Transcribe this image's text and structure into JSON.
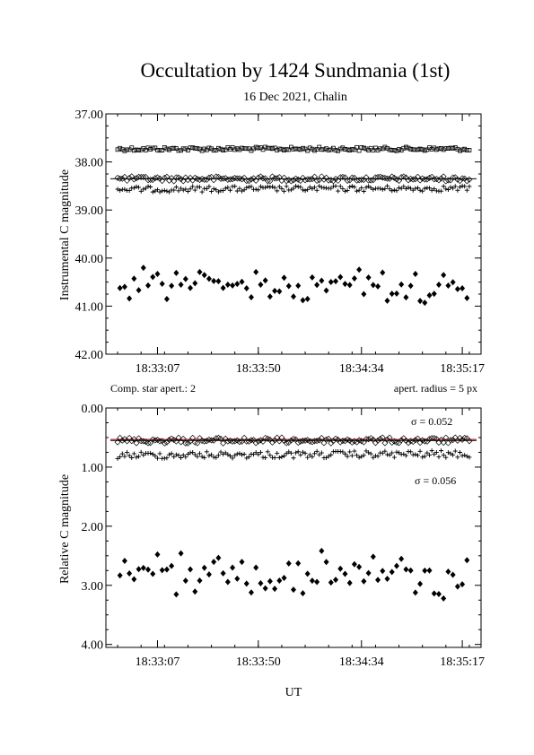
{
  "chart_data": [
    {
      "type": "scatter",
      "title": "Occultation by 1424 Sundmania (1st)",
      "subtitle": "16 Dec 2021, Chalin",
      "xlabel": "",
      "ylabel": "Instrumental C magnitude",
      "x_tick_labels": [
        "18:33:07",
        "18:33:50",
        "18:34:34",
        "18:35:17"
      ],
      "y_tick_labels": [
        "37.00",
        "38.00",
        "39.00",
        "40.00",
        "41.00",
        "42.00"
      ],
      "ylim": [
        42.0,
        37.0
      ],
      "y_inverted": true,
      "x_axis_type": "time",
      "xlim": [
        "18:32:45",
        "18:35:25"
      ],
      "footnote_left": "Comp. star apert.: 2",
      "footnote_right": "apert. radius = 5 px",
      "series": [
        {
          "marker": "square",
          "level_points": [
            [
              "18:32:50",
              37.73
            ],
            [
              "18:35:20",
              37.73
            ]
          ],
          "scatter": 0.04
        },
        {
          "marker": "diamond-open",
          "level_points": [
            [
              "18:32:50",
              38.35
            ],
            [
              "18:35:20",
              38.35
            ]
          ],
          "scatter": 0.05
        },
        {
          "marker": "plus",
          "level_points": [
            [
              "18:32:50",
              38.57
            ],
            [
              "18:35:20",
              38.55
            ]
          ],
          "scatter": 0.06
        },
        {
          "marker": "diamond-filled",
          "level_points": [
            [
              "18:32:50",
              40.55
            ],
            [
              "18:35:20",
              40.6
            ]
          ],
          "scatter": 0.3
        }
      ],
      "reference_lines": [
        {
          "y": 38.35,
          "color": "#000000"
        }
      ]
    },
    {
      "type": "scatter",
      "xlabel": "UT",
      "ylabel": "Relative C magnitude",
      "x_tick_labels": [
        "18:33:07",
        "18:33:50",
        "18:34:34",
        "18:35:17"
      ],
      "y_tick_labels": [
        "0.00",
        "1.00",
        "2.00",
        "3.00",
        "4.00"
      ],
      "ylim": [
        4.05,
        0.0
      ],
      "y_inverted": true,
      "x_axis_type": "time",
      "xlim": [
        "18:32:45",
        "18:35:25"
      ],
      "annotations": [
        "σ = 0.052",
        "σ = 0.056"
      ],
      "series": [
        {
          "marker": "diamond-open",
          "level_points": [
            [
              "18:32:50",
              0.55
            ],
            [
              "18:35:20",
              0.55
            ]
          ],
          "scatter": 0.05
        },
        {
          "marker": "plus",
          "level_points": [
            [
              "18:32:50",
              0.8
            ],
            [
              "18:35:20",
              0.78
            ]
          ],
          "scatter": 0.06
        },
        {
          "marker": "diamond-filled",
          "level_points": [
            [
              "18:32:50",
              2.8
            ],
            [
              "18:35:20",
              2.85
            ]
          ],
          "scatter": 0.3
        }
      ],
      "reference_lines": [
        {
          "y": 0.53,
          "color": "#cc2222"
        },
        {
          "y": 0.55,
          "color": "#000000"
        }
      ]
    }
  ]
}
